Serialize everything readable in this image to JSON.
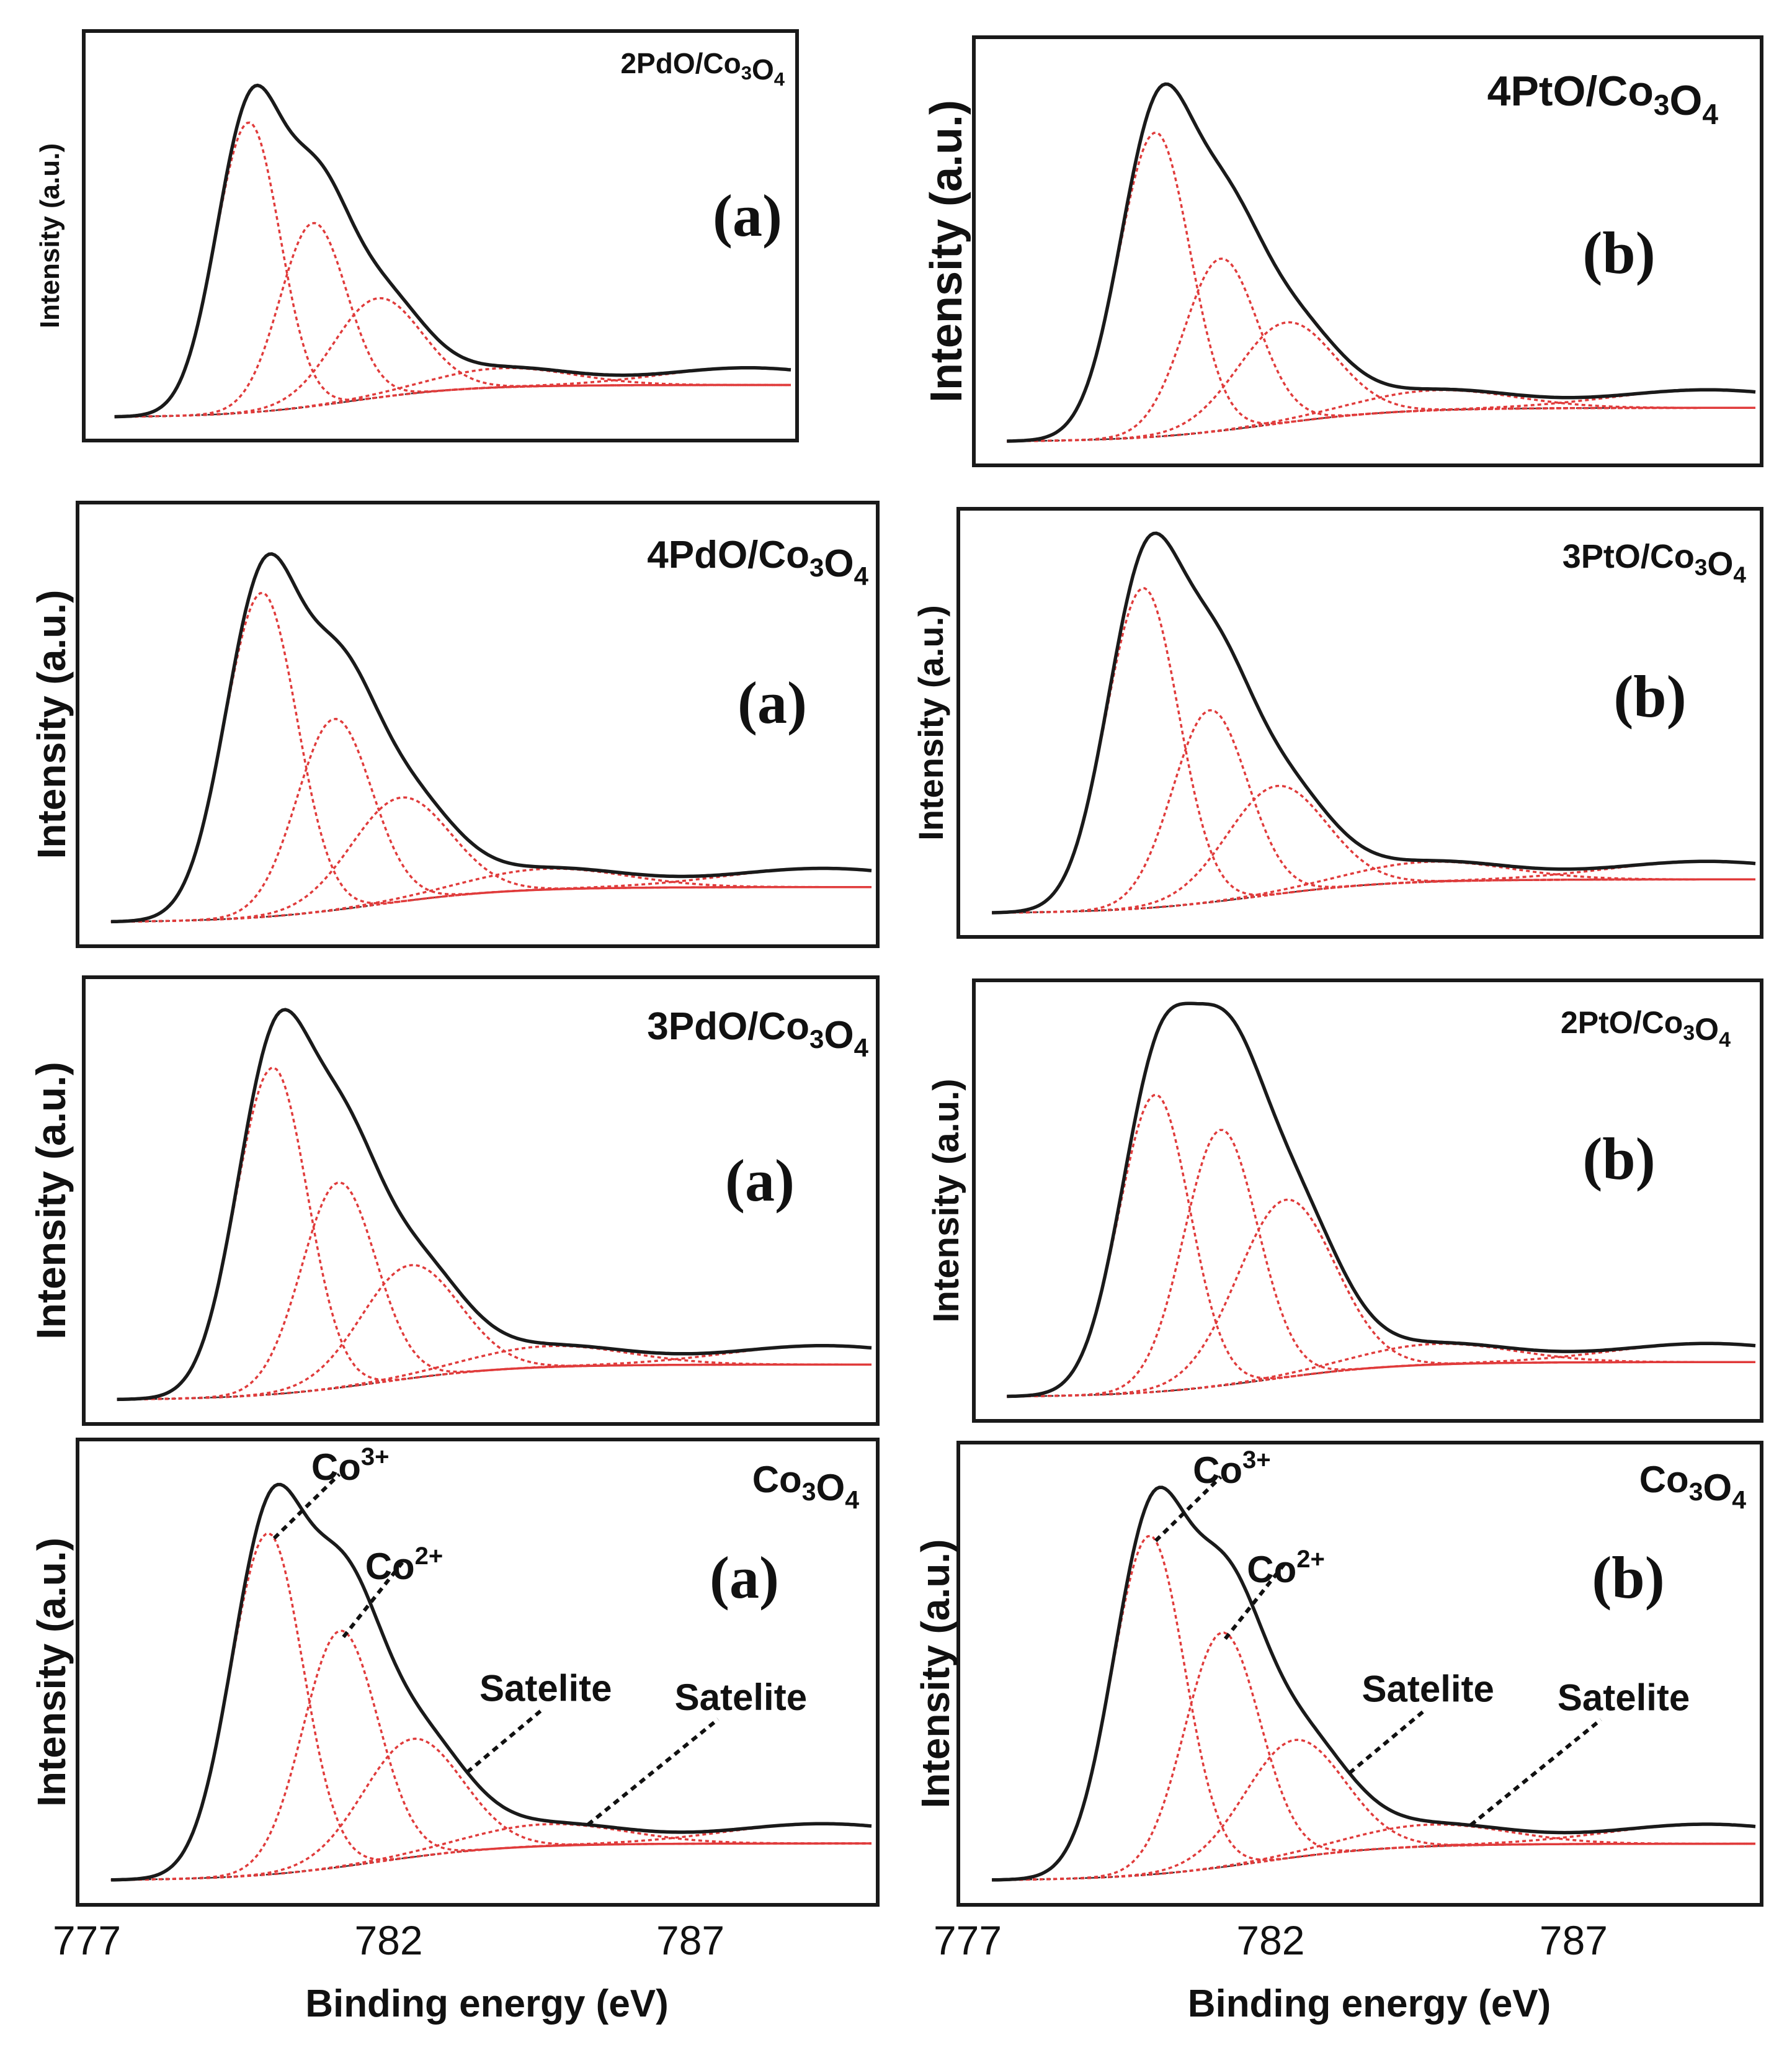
{
  "chart_data": [
    {
      "type": "line",
      "title": "2PdO/Co3O4",
      "tag": "(a)",
      "ylabel": "Intensity (a.u.)",
      "xlim": [
        777,
        790
      ],
      "peaks": [
        {
          "center": 779.9,
          "amplitude": 0.76
        },
        {
          "center": 781.1,
          "amplitude": 0.48
        },
        {
          "center": 782.3,
          "amplitude": 0.26
        }
      ],
      "satellite_amplitude": 0.05
    },
    {
      "type": "line",
      "title": "4PtO/Co3O4",
      "tag": "(b)",
      "ylabel": "Intensity (a.u.)",
      "xlim": [
        777,
        790
      ],
      "peaks": [
        {
          "center": 779.9,
          "amplitude": 0.76
        },
        {
          "center": 781.0,
          "amplitude": 0.43
        },
        {
          "center": 782.1,
          "amplitude": 0.25
        }
      ],
      "satellite_amplitude": 0.05
    },
    {
      "type": "line",
      "title": "4PdO/Co3O4",
      "tag": "(a)",
      "ylabel": "Intensity (a.u.)",
      "xlim": [
        777,
        790
      ],
      "peaks": [
        {
          "center": 779.9,
          "amplitude": 0.78
        },
        {
          "center": 781.1,
          "amplitude": 0.46
        },
        {
          "center": 782.2,
          "amplitude": 0.25
        }
      ],
      "satellite_amplitude": 0.05
    },
    {
      "type": "line",
      "title": "3PtO/Co3O4",
      "tag": "(b)",
      "ylabel": "Intensity (a.u.)",
      "xlim": [
        777,
        790
      ],
      "peaks": [
        {
          "center": 779.9,
          "amplitude": 0.8
        },
        {
          "center": 781.0,
          "amplitude": 0.48
        },
        {
          "center": 782.1,
          "amplitude": 0.27
        }
      ],
      "satellite_amplitude": 0.05
    },
    {
      "type": "line",
      "title": "3PdO/Co3O4",
      "tag": "(a)",
      "ylabel": "Intensity (a.u.)",
      "xlim": [
        777,
        790
      ],
      "peaks": [
        {
          "center": 780.0,
          "amplitude": 0.78
        },
        {
          "center": 781.1,
          "amplitude": 0.49
        },
        {
          "center": 782.3,
          "amplitude": 0.27
        }
      ],
      "satellite_amplitude": 0.05
    },
    {
      "type": "line",
      "title": "2PtO/Co3O4",
      "tag": "(b)",
      "ylabel": "Intensity (a.u.)",
      "xlim": [
        777,
        790
      ],
      "peaks": [
        {
          "center": 779.9,
          "amplitude": 0.72
        },
        {
          "center": 781.0,
          "amplitude": 0.62
        },
        {
          "center": 782.1,
          "amplitude": 0.43
        }
      ],
      "satellite_amplitude": 0.05
    },
    {
      "type": "line",
      "title": "Co3O4",
      "tag": "(a)",
      "ylabel": "Intensity (a.u.)",
      "xlabel": "Binding energy (eV)",
      "xlim": [
        777,
        790
      ],
      "xticks": [
        777,
        782,
        787
      ],
      "peaks": [
        {
          "center": 780.0,
          "amplitude": 0.78
        },
        {
          "center": 781.2,
          "amplitude": 0.54
        },
        {
          "center": 782.4,
          "amplitude": 0.27
        }
      ],
      "satellite_amplitude": 0.05,
      "annotations": [
        "Co3+",
        "Co2+",
        "Satelite",
        "Satelite"
      ]
    },
    {
      "type": "line",
      "title": "Co3O4",
      "tag": "(b)",
      "ylabel": "Intensity (a.u.)",
      "xlabel": "Binding energy (eV)",
      "xlim": [
        777,
        790
      ],
      "xticks": [
        777,
        782,
        787
      ],
      "peaks": [
        {
          "center": 780.0,
          "amplitude": 0.78
        },
        {
          "center": 781.2,
          "amplitude": 0.54
        },
        {
          "center": 782.4,
          "amplitude": 0.27
        }
      ],
      "satellite_amplitude": 0.05,
      "annotations": [
        "Co3+",
        "Co2+",
        "Satelite",
        "Satelite"
      ]
    }
  ]
}
